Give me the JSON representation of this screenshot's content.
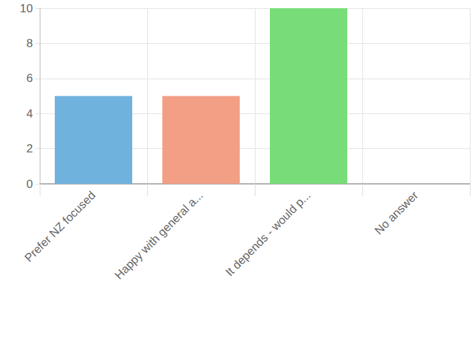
{
  "chart_data": {
    "type": "bar",
    "categories": [
      "Prefer NZ focused",
      "Happy with general a...",
      "It depends - would p...",
      "No answer"
    ],
    "values": [
      5,
      5,
      10,
      0
    ],
    "colors": [
      "#70b2de",
      "#f29f86",
      "#78dd78",
      "#c49ad6"
    ],
    "ylim": [
      0,
      10
    ],
    "yticks": [
      0,
      2,
      4,
      6,
      8,
      10
    ],
    "grid": true
  }
}
